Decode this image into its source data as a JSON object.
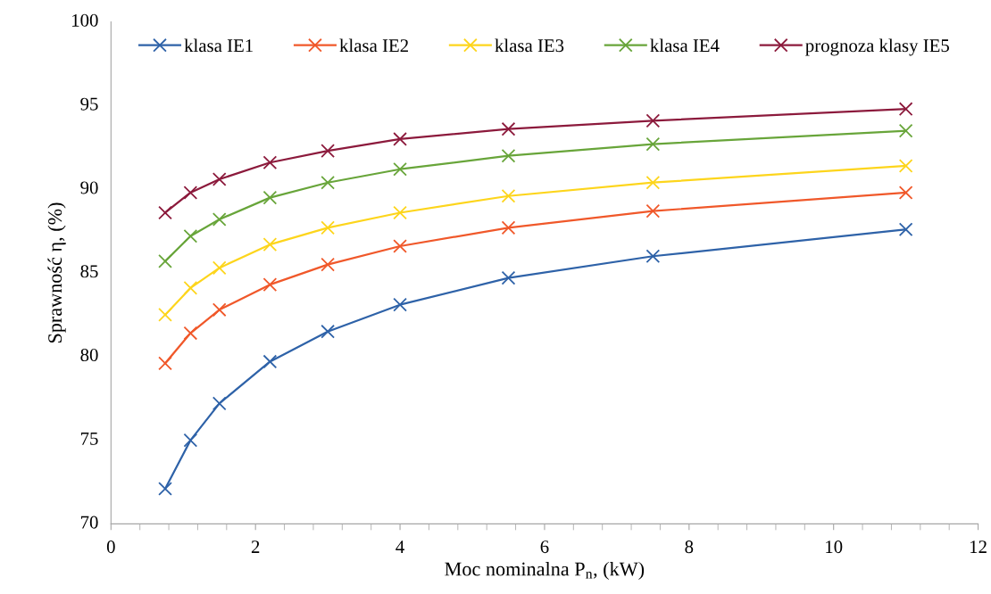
{
  "chart_data": {
    "type": "line",
    "xlabel": "Moc nominalna P$_{n}$, (kW)",
    "ylabel": "Sprawność η, (%)",
    "x": [
      0.75,
      1.1,
      1.5,
      2.2,
      3,
      4,
      5.5,
      7.5,
      11
    ],
    "series": [
      {
        "name": "klasa IE1",
        "color": "#2e62a8",
        "values": [
          72.1,
          75.0,
          77.2,
          79.7,
          81.5,
          83.1,
          84.7,
          86.0,
          87.6
        ]
      },
      {
        "name": "klasa IE2",
        "color": "#f0582a",
        "values": [
          79.6,
          81.4,
          82.8,
          84.3,
          85.5,
          86.6,
          87.7,
          88.7,
          89.8
        ]
      },
      {
        "name": "klasa IE3",
        "color": "#fdd51c",
        "values": [
          82.5,
          84.1,
          85.3,
          86.7,
          87.7,
          88.6,
          89.6,
          90.4,
          91.4
        ]
      },
      {
        "name": "klasa IE4",
        "color": "#68a53a",
        "values": [
          85.7,
          87.2,
          88.2,
          89.5,
          90.4,
          91.2,
          92.0,
          92.7,
          93.5
        ]
      },
      {
        "name": "prognoza klasy IE5",
        "color": "#8c1a3c",
        "values": [
          88.6,
          89.8,
          90.6,
          91.6,
          92.3,
          93.0,
          93.6,
          94.1,
          94.8
        ]
      }
    ],
    "xlim": [
      0,
      12
    ],
    "xticks": [
      0,
      2,
      4,
      6,
      8,
      10,
      12
    ],
    "ylim": [
      70,
      100
    ],
    "yticks": [
      70,
      75,
      80,
      85,
      90,
      95,
      100
    ],
    "grid": false,
    "legend": "top",
    "marker": "cross",
    "line_style": "solid"
  }
}
